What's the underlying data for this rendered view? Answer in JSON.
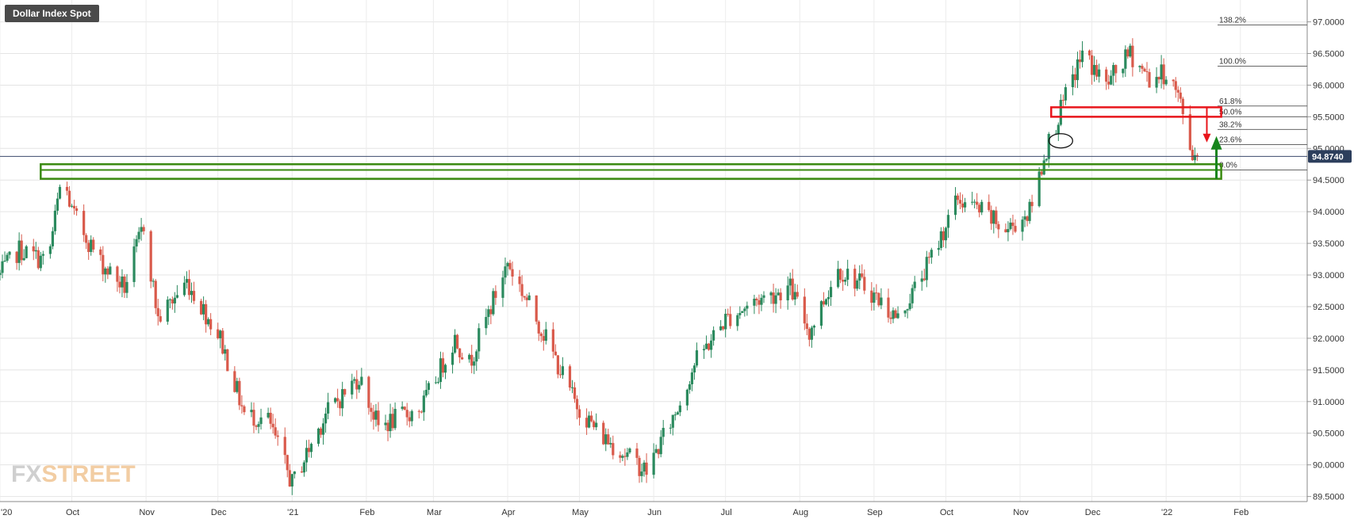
{
  "chart_data": {
    "type": "candlestick",
    "title": "Dollar Index Spot",
    "last_price_label": "94.8740",
    "last_price": 94.874,
    "ylim": [
      89.4,
      97.25
    ],
    "y_ticks": [
      {
        "value": 97.0,
        "label": "97.0000"
      },
      {
        "value": 96.5,
        "label": "96.5000"
      },
      {
        "value": 96.0,
        "label": "96.0000"
      },
      {
        "value": 95.5,
        "label": "95.5000"
      },
      {
        "value": 95.0,
        "label": "95.0000"
      },
      {
        "value": 94.5,
        "label": "94.5000"
      },
      {
        "value": 94.0,
        "label": "94.0000"
      },
      {
        "value": 93.5,
        "label": "93.5000"
      },
      {
        "value": 93.0,
        "label": "93.0000"
      },
      {
        "value": 92.5,
        "label": "92.5000"
      },
      {
        "value": 92.0,
        "label": "92.0000"
      },
      {
        "value": 91.5,
        "label": "91.5000"
      },
      {
        "value": 91.0,
        "label": "91.0000"
      },
      {
        "value": 90.5,
        "label": "90.5000"
      },
      {
        "value": 90.0,
        "label": "90.0000"
      },
      {
        "value": 89.5,
        "label": "89.5000"
      }
    ],
    "x_ticks": [
      "'20",
      "Oct",
      "Nov",
      "Dec",
      "'21",
      "Feb",
      "Mar",
      "Apr",
      "May",
      "Jun",
      "Jul",
      "Aug",
      "Sep",
      "Oct",
      "Nov",
      "Dec",
      "'22",
      "Feb"
    ],
    "x_tick_days": [
      0,
      30,
      61,
      91,
      122,
      153,
      181,
      212,
      242,
      273,
      303,
      334,
      365,
      395,
      426,
      456,
      487,
      518
    ],
    "x_domain_days": [
      0,
      532
    ],
    "price_path": [
      [
        0,
        93.0
      ],
      [
        8,
        93.4
      ],
      [
        20,
        93.2
      ],
      [
        26,
        94.6
      ],
      [
        30,
        94.0
      ],
      [
        42,
        93.2
      ],
      [
        52,
        92.8
      ],
      [
        60,
        93.8
      ],
      [
        66,
        92.3
      ],
      [
        78,
        92.9
      ],
      [
        92,
        92.0
      ],
      [
        102,
        90.8
      ],
      [
        112,
        90.7
      ],
      [
        122,
        89.7
      ],
      [
        136,
        90.8
      ],
      [
        150,
        91.4
      ],
      [
        158,
        90.6
      ],
      [
        176,
        90.9
      ],
      [
        190,
        92.0
      ],
      [
        196,
        91.6
      ],
      [
        212,
        93.2
      ],
      [
        228,
        92.0
      ],
      [
        240,
        91.0
      ],
      [
        250,
        90.5
      ],
      [
        270,
        89.9
      ],
      [
        283,
        90.9
      ],
      [
        290,
        91.6
      ],
      [
        303,
        92.3
      ],
      [
        316,
        92.6
      ],
      [
        330,
        92.8
      ],
      [
        338,
        92.1
      ],
      [
        350,
        93.1
      ],
      [
        362,
        92.8
      ],
      [
        375,
        92.3
      ],
      [
        388,
        93.2
      ],
      [
        400,
        94.2
      ],
      [
        410,
        94.0
      ],
      [
        420,
        93.7
      ],
      [
        430,
        94.0
      ],
      [
        437,
        95.0
      ],
      [
        444,
        95.7
      ],
      [
        452,
        96.5
      ],
      [
        462,
        96.0
      ],
      [
        472,
        96.5
      ],
      [
        480,
        96.1
      ],
      [
        488,
        96.2
      ],
      [
        493,
        95.7
      ],
      [
        498,
        94.9
      ],
      [
        500,
        94.87
      ]
    ],
    "fibonacci": [
      {
        "label": "138.2%",
        "value": 96.95
      },
      {
        "label": "100.0%",
        "value": 96.3
      },
      {
        "label": "61.8%",
        "value": 95.67
      },
      {
        "label": "50.0%",
        "value": 95.5
      },
      {
        "label": "38.2%",
        "value": 95.3
      },
      {
        "label": "23.6%",
        "value": 95.06
      },
      {
        "label": "0.0%",
        "value": 94.66
      }
    ],
    "annotations": {
      "support_zone": {
        "day_start": 17,
        "day_end": 510,
        "top": 94.75,
        "bottom": 94.52,
        "color": "#3a8a10"
      },
      "resistance_zone": {
        "day_start": 439,
        "day_end": 510,
        "top": 95.65,
        "bottom": 95.5,
        "color": "#e8151b"
      },
      "drop_arrow": {
        "day": 504,
        "from": 95.64,
        "to": 95.12,
        "color": "#e8151b"
      },
      "up_arrow": {
        "day": 508,
        "from": 94.52,
        "to": 95.12,
        "color": "#16851c"
      },
      "circle": {
        "day": 443,
        "value": 95.12
      }
    },
    "colors": {
      "up": "#2b8a5e",
      "down": "#d95a4b",
      "last_line": "#3b4a6b",
      "badge": "#2c3e5c"
    }
  },
  "logo": {
    "part1": "FX",
    "part2": "STREET"
  }
}
